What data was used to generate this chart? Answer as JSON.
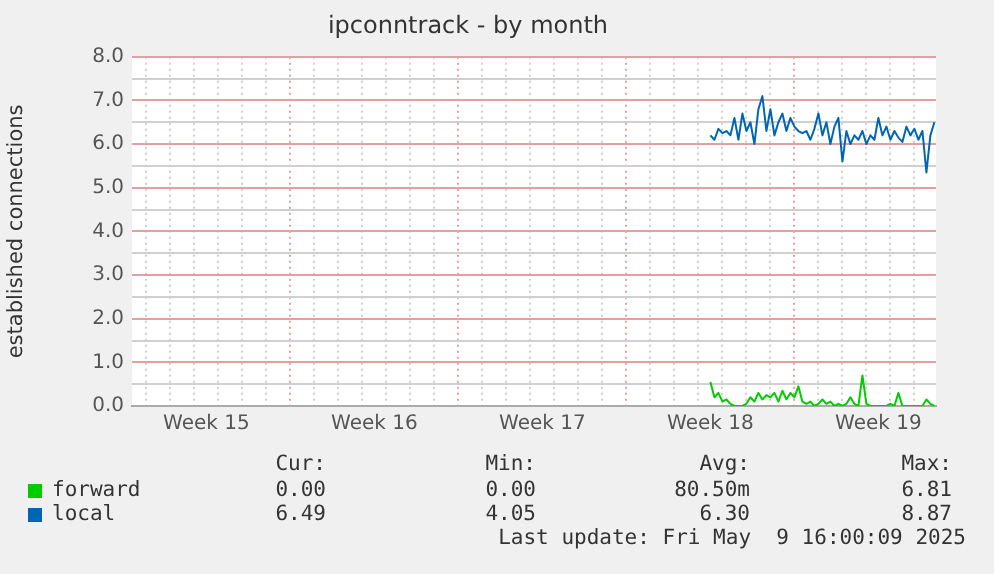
{
  "chart_data": {
    "type": "line",
    "title": "ipconntrack - by month",
    "ylabel": "established connections",
    "xlim": [
      "2025-04-06T09:36",
      "2025-05-09T21:36"
    ],
    "xticks": [
      {
        "value": "2025-04-07",
        "label": null
      },
      {
        "value": "2025-04-08",
        "label": null
      },
      {
        "value": "2025-04-09",
        "label": null
      },
      {
        "value": "2025-04-09T12:00",
        "label": "Week 15"
      },
      {
        "value": "2025-04-10",
        "label": null
      },
      {
        "value": "2025-04-11",
        "label": null
      },
      {
        "value": "2025-04-12",
        "label": null
      },
      {
        "value": "2025-04-13",
        "label": null
      },
      {
        "value": "2025-04-14",
        "label": null
      },
      {
        "value": "2025-04-15",
        "label": null
      },
      {
        "value": "2025-04-16",
        "label": null
      },
      {
        "value": "2025-04-16T12:00",
        "label": "Week 16"
      },
      {
        "value": "2025-04-17",
        "label": null
      },
      {
        "value": "2025-04-18",
        "label": null
      },
      {
        "value": "2025-04-19",
        "label": null
      },
      {
        "value": "2025-04-20",
        "label": null
      },
      {
        "value": "2025-04-21",
        "label": null
      },
      {
        "value": "2025-04-22",
        "label": null
      },
      {
        "value": "2025-04-23",
        "label": null
      },
      {
        "value": "2025-04-23T12:00",
        "label": "Week 17"
      },
      {
        "value": "2025-04-24",
        "label": null
      },
      {
        "value": "2025-04-25",
        "label": null
      },
      {
        "value": "2025-04-26",
        "label": null
      },
      {
        "value": "2025-04-27",
        "label": null
      },
      {
        "value": "2025-04-28",
        "label": null
      },
      {
        "value": "2025-04-29",
        "label": null
      },
      {
        "value": "2025-04-30",
        "label": null
      },
      {
        "value": "2025-04-30T12:00",
        "label": "Week 18"
      },
      {
        "value": "2025-05-01",
        "label": null
      },
      {
        "value": "2025-05-02",
        "label": null
      },
      {
        "value": "2025-05-03",
        "label": null
      },
      {
        "value": "2025-05-04",
        "label": null
      },
      {
        "value": "2025-05-05",
        "label": null
      },
      {
        "value": "2025-05-06",
        "label": null
      },
      {
        "value": "2025-05-07",
        "label": null
      },
      {
        "value": "2025-05-07T12:00",
        "label": "Week 19"
      },
      {
        "value": "2025-05-08",
        "label": null
      },
      {
        "value": "2025-05-09",
        "label": null
      }
    ],
    "ylim": [
      0,
      8
    ],
    "yticks": [
      {
        "value": 0,
        "label": "0.0"
      },
      {
        "value": 0.5,
        "label": null
      },
      {
        "value": 1,
        "label": "1.0"
      },
      {
        "value": 1.5,
        "label": null
      },
      {
        "value": 2,
        "label": "2.0"
      },
      {
        "value": 2.5,
        "label": null
      },
      {
        "value": 3,
        "label": "3.0"
      },
      {
        "value": 3.5,
        "label": null
      },
      {
        "value": 4,
        "label": "4.0"
      },
      {
        "value": 4.5,
        "label": null
      },
      {
        "value": 5,
        "label": "5.0"
      },
      {
        "value": 5.5,
        "label": null
      },
      {
        "value": 6,
        "label": "6.0"
      },
      {
        "value": 6.5,
        "label": null
      },
      {
        "value": 7,
        "label": "7.0"
      },
      {
        "value": 7.5,
        "label": null
      },
      {
        "value": 8,
        "label": "8.0"
      }
    ],
    "grid": true,
    "legend": "bottom",
    "marker": "none",
    "x": [
      "2025-04-30T12:00",
      "2025-04-30T16:00",
      "2025-04-30T20:00",
      "2025-05-01T00:00",
      "2025-05-01T04:00",
      "2025-05-01T08:00",
      "2025-05-01T12:00",
      "2025-05-01T16:00",
      "2025-05-01T20:00",
      "2025-05-02T00:00",
      "2025-05-02T04:00",
      "2025-05-02T08:00",
      "2025-05-02T12:00",
      "2025-05-02T16:00",
      "2025-05-02T20:00",
      "2025-05-03T00:00",
      "2025-05-03T04:00",
      "2025-05-03T08:00",
      "2025-05-03T12:00",
      "2025-05-03T16:00",
      "2025-05-03T20:00",
      "2025-05-04T00:00",
      "2025-05-04T04:00",
      "2025-05-04T08:00",
      "2025-05-04T12:00",
      "2025-05-04T16:00",
      "2025-05-04T20:00",
      "2025-05-05T00:00",
      "2025-05-05T04:00",
      "2025-05-05T08:00",
      "2025-05-05T12:00",
      "2025-05-05T16:00",
      "2025-05-05T20:00",
      "2025-05-06T00:00",
      "2025-05-06T04:00",
      "2025-05-06T08:00",
      "2025-05-06T12:00",
      "2025-05-06T16:00",
      "2025-05-06T20:00",
      "2025-05-07T00:00",
      "2025-05-07T04:00",
      "2025-05-07T08:00",
      "2025-05-07T12:00",
      "2025-05-07T16:00",
      "2025-05-07T20:00",
      "2025-05-08T00:00",
      "2025-05-08T04:00",
      "2025-05-08T08:00",
      "2025-05-08T12:00",
      "2025-05-08T16:00",
      "2025-05-08T20:00",
      "2025-05-09T00:00",
      "2025-05-09T04:00",
      "2025-05-09T08:00",
      "2025-05-09T12:00",
      "2025-05-09T16:00",
      "2025-05-09T20:00"
    ],
    "series": [
      {
        "name": "forward",
        "color": "#00cc00",
        "values": [
          0.55,
          0.2,
          0.3,
          0.1,
          0.15,
          0.05,
          0,
          0,
          0,
          0.05,
          0.2,
          0.1,
          0.3,
          0.15,
          0.25,
          0.2,
          0.3,
          0.1,
          0.35,
          0.15,
          0.3,
          0.2,
          0.45,
          0.1,
          0.05,
          0.1,
          0,
          0.05,
          0.15,
          0.05,
          0.1,
          0,
          0.05,
          0,
          0.05,
          0.2,
          0.05,
          0,
          0.7,
          0.05,
          0,
          0,
          0,
          0,
          0,
          0.05,
          0,
          0.3,
          0,
          0,
          0,
          0,
          0,
          0,
          0.15,
          0.05,
          0
        ]
      },
      {
        "name": "local",
        "color": "#0066b3",
        "values": [
          6.2,
          6.1,
          6.35,
          6.25,
          6.3,
          6.2,
          6.6,
          6.1,
          6.7,
          6.3,
          6.5,
          6.0,
          6.8,
          7.1,
          6.3,
          6.8,
          6.2,
          6.5,
          6.7,
          6.3,
          6.6,
          6.4,
          6.3,
          6.25,
          6.3,
          6.1,
          6.35,
          6.7,
          6.2,
          6.5,
          6.0,
          6.4,
          6.6,
          5.6,
          6.3,
          6.0,
          6.2,
          6.1,
          6.3,
          6.0,
          6.2,
          6.1,
          6.6,
          6.2,
          6.4,
          6.1,
          6.3,
          6.15,
          6.05,
          6.4,
          6.2,
          6.35,
          6.1,
          6.3,
          5.35,
          6.2,
          6.5
        ]
      }
    ],
    "annotations": [
      "Cur:",
      "Min:",
      "Avg:",
      "Max:",
      "0.00",
      "0.00",
      "80.50m",
      "6.81",
      "6.49",
      "4.05",
      "6.30",
      "8.87",
      "Last update: Fri May  9 16:00:09 2025"
    ]
  }
}
